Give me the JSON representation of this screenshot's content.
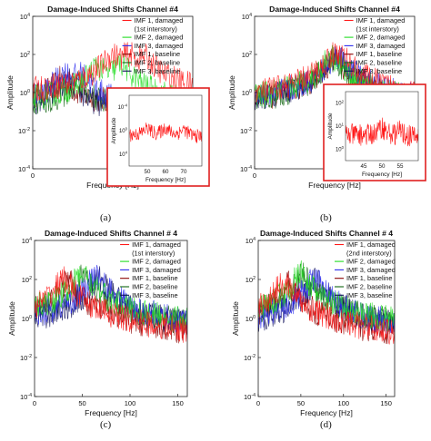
{
  "figure": {
    "panel_letters": [
      "(a)",
      "(b)",
      "(c)",
      "(d)"
    ],
    "colors": {
      "imf1_damaged": "#ff1a1a",
      "imf2_damaged": "#22dd22",
      "imf3_damaged": "#2a2aee",
      "imf1_baseline": "#8b0000",
      "imf2_baseline": "#116611",
      "imf3_baseline": "#11115a",
      "inset_border": "#e02020"
    }
  },
  "chart_data": [
    {
      "type": "line",
      "title": "Damage-Induced Shifts Channel #4",
      "xlabel": "Frequency [Hz]",
      "ylabel": "Amplitude",
      "yscale": "log",
      "xlim": [
        0,
        100
      ],
      "ylim": [
        0.0001,
        10000
      ],
      "x_ticks": [
        "0",
        "50"
      ],
      "y_ticks": [
        "10^-4",
        "10^-2",
        "10^0",
        "10^2",
        "10^4"
      ],
      "legend": [
        "IMF 1, damaged",
        "(1st interstory)",
        "IMF 2, damaged",
        "IMF 3, damaged",
        "IMF 1, baseline",
        "IMF 2, baseline",
        "IMF 3, baseline"
      ],
      "legend_position": "top-right",
      "series": [
        {
          "name": "IMF 1, damaged",
          "peaks": [
            [
              50,
              80
            ],
            [
              60,
              90
            ],
            [
              70,
              60
            ]
          ],
          "base": 0.3
        },
        {
          "name": "IMF 2, damaged",
          "peaks": [
            [
              40,
              20
            ],
            [
              55,
              30
            ]
          ],
          "base": 0.2
        },
        {
          "name": "IMF 3, damaged",
          "peaks": [
            [
              20,
              10
            ],
            [
              30,
              8
            ]
          ],
          "base": 0.1
        },
        {
          "name": "IMF 1, baseline",
          "peaks": [
            [
              18,
              5
            ]
          ],
          "base": 0.5
        },
        {
          "name": "IMF 2, baseline",
          "peaks": [
            [
              28,
              3
            ]
          ],
          "base": 0.3
        },
        {
          "name": "IMF 3, baseline",
          "peaks": [
            [
              22,
              4
            ]
          ],
          "base": 0.2
        }
      ],
      "inset": {
        "xlim": [
          40,
          80
        ],
        "ylim": [
          0.0001,
          10000
        ],
        "x_ticks": [
          "50",
          "60",
          "70"
        ],
        "y_ticks": [
          "10^-4",
          "10^0",
          "10^4"
        ],
        "xlabel": "Frequency [Hz]",
        "ylabel": "Amplitude"
      }
    },
    {
      "type": "line",
      "title": "Damage-Induced Shifts Channel #4",
      "xlabel": "Frequency [Hz]",
      "ylabel": "Amplitude",
      "yscale": "log",
      "xlim": [
        0,
        100
      ],
      "ylim": [
        0.0001,
        10000
      ],
      "x_ticks": [
        "0",
        "50"
      ],
      "y_ticks": [
        "10^-4",
        "10^-2",
        "10^0",
        "10^2",
        "10^4"
      ],
      "legend": [
        "IMF 1, damaged",
        "(1st interstory)",
        "IMF 2, damaged",
        "IMF 3, damaged",
        "IMF 1, baseline",
        "IMF 2, baseline",
        "IMF 3, baseline"
      ],
      "legend_position": "top-right",
      "series": [
        {
          "name": "IMF 1, damaged",
          "peaks": [
            [
              50,
              100
            ],
            [
              55,
              40
            ]
          ],
          "base": 0.1
        },
        {
          "name": "IMF 2, damaged",
          "peaks": [
            [
              48,
              80
            ]
          ],
          "base": 0.1
        },
        {
          "name": "IMF 3, damaged",
          "peaks": [
            [
              52,
              90
            ]
          ],
          "base": 0.05
        },
        {
          "name": "IMF 1, baseline",
          "peaks": [
            [
              50,
              60
            ]
          ],
          "base": 0.1
        },
        {
          "name": "IMF 2, baseline",
          "peaks": [
            [
              49,
              50
            ]
          ],
          "base": 0.1
        },
        {
          "name": "IMF 3, baseline",
          "peaks": [
            [
              51,
              70
            ]
          ],
          "base": 0.05
        }
      ],
      "inset": {
        "xlim": [
          40,
          60
        ],
        "ylim": [
          0.01,
          1000
        ],
        "x_ticks": [
          "45",
          "50",
          "55"
        ],
        "y_ticks": [
          "10^2",
          "10^1",
          "10^0"
        ],
        "xlabel": "Frequency [Hz]",
        "ylabel": "Amplitude"
      }
    },
    {
      "type": "line",
      "title": "Damage-Induced Shifts Channel # 4",
      "xlabel": "Frequency [Hz]",
      "ylabel": "Amplitude",
      "yscale": "log",
      "xlim": [
        0,
        160
      ],
      "ylim": [
        0.0001,
        10000
      ],
      "x_ticks": [
        "0",
        "50",
        "100",
        "150"
      ],
      "y_ticks": [
        "10^-4",
        "10^-2",
        "10^0",
        "10^2",
        "10^4"
      ],
      "legend": [
        "IMF 1, damaged",
        "(1st interstory)",
        "IMF 2, damaged",
        "IMF 3, damaged",
        "IMF 1, baseline",
        "IMF 2, baseline",
        "IMF 3, baseline"
      ],
      "legend_position": "top-right",
      "series": [
        {
          "name": "IMF 1, damaged",
          "peaks": [
            [
              30,
              100
            ]
          ],
          "base": 0.05
        },
        {
          "name": "IMF 2, damaged",
          "peaks": [
            [
              50,
              200
            ]
          ],
          "base": 0.5
        },
        {
          "name": "IMF 3, damaged",
          "peaks": [
            [
              65,
              150
            ]
          ],
          "base": 0.2
        },
        {
          "name": "IMF 1, baseline",
          "peaks": [
            [
              35,
              80
            ]
          ],
          "base": 0.05
        },
        {
          "name": "IMF 2, baseline",
          "peaks": [
            [
              52,
              150
            ]
          ],
          "base": 0.5
        },
        {
          "name": "IMF 3, baseline",
          "peaks": [
            [
              68,
              100
            ]
          ],
          "base": 0.2
        }
      ]
    },
    {
      "type": "line",
      "title": "Damage-Induced Shifts Channel # 4",
      "xlabel": "Frequency [Hz]",
      "ylabel": "Amplitude",
      "yscale": "log",
      "xlim": [
        0,
        160
      ],
      "ylim": [
        0.0001,
        10000
      ],
      "x_ticks": [
        "0",
        "50",
        "100",
        "150"
      ],
      "y_ticks": [
        "10^-4",
        "10^-2",
        "10^0",
        "10^2",
        "10^4"
      ],
      "legend": [
        "IMF 1, damaged",
        "(2nd interstory)",
        "IMF 2, damaged",
        "IMF 3, damaged",
        "IMF 1, baseline",
        "IMF 2, baseline",
        "IMF 3, baseline"
      ],
      "legend_position": "top-right",
      "series": [
        {
          "name": "IMF 1, damaged",
          "peaks": [
            [
              30,
              80
            ]
          ],
          "base": 0.05
        },
        {
          "name": "IMF 2, damaged",
          "peaks": [
            [
              50,
              200
            ]
          ],
          "base": 0.5
        },
        {
          "name": "IMF 3, damaged",
          "peaks": [
            [
              65,
              120
            ]
          ],
          "base": 0.2
        },
        {
          "name": "IMF 1, baseline",
          "peaks": [
            [
              35,
              60
            ]
          ],
          "base": 0.05
        },
        {
          "name": "IMF 2, baseline",
          "peaks": [
            [
              52,
              150
            ]
          ],
          "base": 0.5
        },
        {
          "name": "IMF 3, baseline",
          "peaks": [
            [
              68,
              90
            ]
          ],
          "base": 0.2
        }
      ]
    }
  ]
}
